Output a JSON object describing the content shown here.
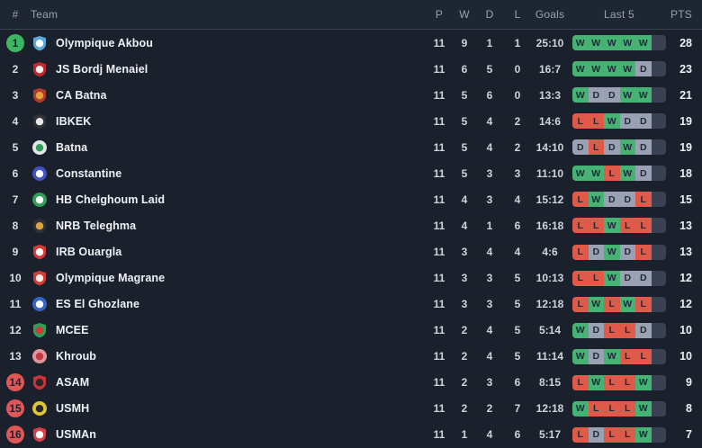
{
  "table": {
    "headers": {
      "rank": "#",
      "team": "Team",
      "played": "P",
      "wins": "W",
      "draws": "D",
      "losses": "L",
      "goals": "Goals",
      "last5": "Last 5",
      "points": "PTS"
    }
  },
  "colors": {
    "win": "#46b273",
    "draw": "#99a1b3",
    "loss": "#e05a49",
    "empty_slot": "#3a4152",
    "promotion_badge": "#3db662",
    "relegation_badge": "#e15656",
    "header_bg": "#1e2631",
    "body_bg": "#1b212c",
    "divider": "#3b4252"
  },
  "teams": [
    {
      "rank": "1",
      "rank_status": "promotion",
      "name": "Olympique Akbou",
      "played": "11",
      "wins": "9",
      "draws": "1",
      "losses": "1",
      "goals": "25:10",
      "last5": [
        "W",
        "W",
        "W",
        "W",
        "W"
      ],
      "points": "28",
      "logo": {
        "shape": "shield",
        "primary": "#5aa7dc",
        "secondary": "#ffffff"
      }
    },
    {
      "rank": "2",
      "rank_status": "none",
      "name": "JS Bordj Menaiel",
      "played": "11",
      "wins": "6",
      "draws": "5",
      "losses": "0",
      "goals": "16:7",
      "last5": [
        "W",
        "W",
        "W",
        "W",
        "D"
      ],
      "points": "23",
      "logo": {
        "shape": "shield",
        "primary": "#c1272d",
        "secondary": "#f0f0f0"
      }
    },
    {
      "rank": "3",
      "rank_status": "none",
      "name": "CA Batna",
      "played": "11",
      "wins": "5",
      "draws": "6",
      "losses": "0",
      "goals": "13:3",
      "last5": [
        "W",
        "D",
        "D",
        "W",
        "W"
      ],
      "points": "21",
      "logo": {
        "shape": "shield",
        "primary": "#b03a2e",
        "secondary": "#e0a33e"
      }
    },
    {
      "rank": "4",
      "rank_status": "none",
      "name": "IBKEK",
      "played": "11",
      "wins": "5",
      "draws": "4",
      "losses": "2",
      "goals": "14:6",
      "last5": [
        "L",
        "L",
        "W",
        "D",
        "D"
      ],
      "points": "19",
      "logo": {
        "shape": "shield",
        "primary": "#2f3338",
        "secondary": "#e8e8e8"
      }
    },
    {
      "rank": "5",
      "rank_status": "none",
      "name": "Batna",
      "played": "11",
      "wins": "5",
      "draws": "4",
      "losses": "2",
      "goals": "14:10",
      "last5": [
        "D",
        "L",
        "D",
        "W",
        "D"
      ],
      "points": "19",
      "logo": {
        "shape": "circle",
        "primary": "#e5e5e5",
        "secondary": "#2f9e57"
      }
    },
    {
      "rank": "6",
      "rank_status": "none",
      "name": "Constantine",
      "played": "11",
      "wins": "5",
      "draws": "3",
      "losses": "3",
      "goals": "11:10",
      "last5": [
        "W",
        "W",
        "L",
        "W",
        "D"
      ],
      "points": "18",
      "logo": {
        "shape": "circle",
        "primary": "#4152c4",
        "secondary": "#ffffff"
      }
    },
    {
      "rank": "7",
      "rank_status": "none",
      "name": "HB Chelghoum Laid",
      "played": "11",
      "wins": "4",
      "draws": "3",
      "losses": "4",
      "goals": "15:12",
      "last5": [
        "L",
        "W",
        "D",
        "D",
        "L"
      ],
      "points": "15",
      "logo": {
        "shape": "circle",
        "primary": "#2f9e57",
        "secondary": "#ffffff"
      }
    },
    {
      "rank": "8",
      "rank_status": "none",
      "name": "NRB Teleghma",
      "played": "11",
      "wins": "4",
      "draws": "1",
      "losses": "6",
      "goals": "16:18",
      "last5": [
        "L",
        "L",
        "W",
        "L",
        "L"
      ],
      "points": "13",
      "logo": {
        "shape": "shield",
        "primary": "#2e3238",
        "secondary": "#d9a43c"
      }
    },
    {
      "rank": "9",
      "rank_status": "none",
      "name": "IRB Ouargla",
      "played": "11",
      "wins": "3",
      "draws": "4",
      "losses": "4",
      "goals": "4:6",
      "last5": [
        "L",
        "D",
        "W",
        "D",
        "L"
      ],
      "points": "13",
      "logo": {
        "shape": "shield",
        "primary": "#d23c35",
        "secondary": "#ffffff"
      }
    },
    {
      "rank": "10",
      "rank_status": "none",
      "name": "Olympique Magrane",
      "played": "11",
      "wins": "3",
      "draws": "3",
      "losses": "5",
      "goals": "10:13",
      "last5": [
        "L",
        "L",
        "W",
        "D",
        "D"
      ],
      "points": "12",
      "logo": {
        "shape": "shield",
        "primary": "#d23c35",
        "secondary": "#f5eaea"
      }
    },
    {
      "rank": "11",
      "rank_status": "none",
      "name": "ES El Ghozlane",
      "played": "11",
      "wins": "3",
      "draws": "3",
      "losses": "5",
      "goals": "12:18",
      "last5": [
        "L",
        "W",
        "L",
        "W",
        "L"
      ],
      "points": "12",
      "logo": {
        "shape": "circle",
        "primary": "#3566c4",
        "secondary": "#ffffff"
      }
    },
    {
      "rank": "12",
      "rank_status": "none",
      "name": "MCEE",
      "played": "11",
      "wins": "2",
      "draws": "4",
      "losses": "5",
      "goals": "5:14",
      "last5": [
        "W",
        "D",
        "L",
        "L",
        "D"
      ],
      "points": "10",
      "logo": {
        "shape": "shield",
        "primary": "#2f9e57",
        "secondary": "#d23c35"
      }
    },
    {
      "rank": "13",
      "rank_status": "none",
      "name": "Khroub",
      "played": "11",
      "wins": "2",
      "draws": "4",
      "losses": "5",
      "goals": "11:14",
      "last5": [
        "W",
        "D",
        "W",
        "L",
        "L"
      ],
      "points": "10",
      "logo": {
        "shape": "circle",
        "primary": "#e2949c",
        "secondary": "#c43840"
      }
    },
    {
      "rank": "14",
      "rank_status": "relegation",
      "name": "ASAM",
      "played": "11",
      "wins": "2",
      "draws": "3",
      "losses": "6",
      "goals": "8:15",
      "last5": [
        "L",
        "W",
        "L",
        "L",
        "W"
      ],
      "points": "9",
      "logo": {
        "shape": "shield",
        "primary": "#c8333a",
        "secondary": "#26262b"
      }
    },
    {
      "rank": "15",
      "rank_status": "relegation",
      "name": "USMH",
      "played": "11",
      "wins": "2",
      "draws": "2",
      "losses": "7",
      "goals": "12:18",
      "last5": [
        "W",
        "L",
        "L",
        "L",
        "W"
      ],
      "points": "8",
      "logo": {
        "shape": "circle",
        "primary": "#ddc633",
        "secondary": "#26262b"
      }
    },
    {
      "rank": "16",
      "rank_status": "relegation",
      "name": "USMAn",
      "played": "11",
      "wins": "1",
      "draws": "4",
      "losses": "6",
      "goals": "5:17",
      "last5": [
        "L",
        "D",
        "L",
        "L",
        "W"
      ],
      "points": "7",
      "logo": {
        "shape": "shield",
        "primary": "#d6404a",
        "secondary": "#ffffff"
      }
    }
  ]
}
